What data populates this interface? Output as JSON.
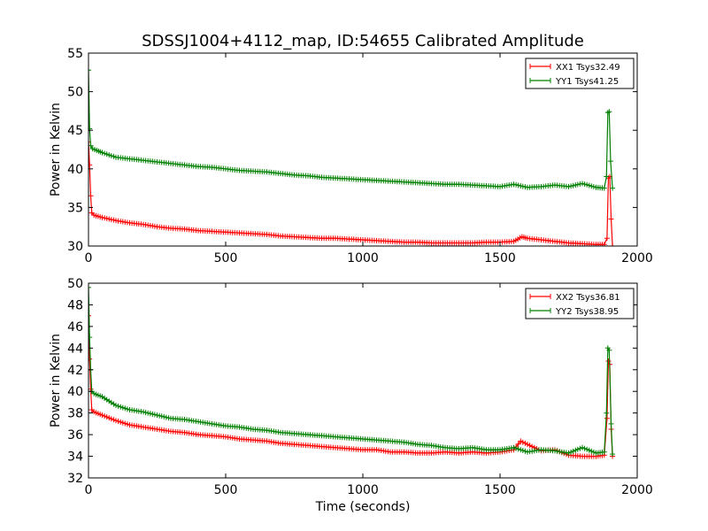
{
  "figure": {
    "title": "SDSSJ1004+4112_map, ID:54655 Calibrated Amplitude"
  },
  "chart_data": [
    {
      "type": "line",
      "title": "SDSSJ1004+4112_map, ID:54655 Calibrated Amplitude",
      "xlabel": "",
      "ylabel": "Power in Kelvin",
      "xlim": [
        0,
        2000
      ],
      "ylim": [
        30,
        55
      ],
      "x_ticks": [
        "0",
        "500",
        "1000",
        "1500",
        "2000"
      ],
      "y_ticks": [
        "30",
        "35",
        "40",
        "45",
        "50",
        "55"
      ],
      "grid": false,
      "legend_position": "top-right",
      "marker": "+",
      "series": [
        {
          "name": "XX1 Tsys32.49",
          "color": "#ff0000",
          "points": [
            [
              0,
              43.5
            ],
            [
              4,
              40.5
            ],
            [
              8,
              36.5
            ],
            [
              12,
              34.3
            ],
            [
              20,
              34.0
            ],
            [
              50,
              33.7
            ],
            [
              100,
              33.3
            ],
            [
              150,
              33.0
            ],
            [
              200,
              32.8
            ],
            [
              250,
              32.5
            ],
            [
              300,
              32.3
            ],
            [
              350,
              32.2
            ],
            [
              400,
              32.0
            ],
            [
              450,
              31.9
            ],
            [
              500,
              31.8
            ],
            [
              550,
              31.7
            ],
            [
              600,
              31.6
            ],
            [
              650,
              31.5
            ],
            [
              700,
              31.3
            ],
            [
              750,
              31.2
            ],
            [
              800,
              31.1
            ],
            [
              850,
              31.0
            ],
            [
              900,
              31.0
            ],
            [
              950,
              30.9
            ],
            [
              1000,
              30.8
            ],
            [
              1050,
              30.7
            ],
            [
              1100,
              30.6
            ],
            [
              1150,
              30.5
            ],
            [
              1200,
              30.5
            ],
            [
              1250,
              30.4
            ],
            [
              1300,
              30.4
            ],
            [
              1350,
              30.4
            ],
            [
              1400,
              30.4
            ],
            [
              1450,
              30.5
            ],
            [
              1500,
              30.5
            ],
            [
              1550,
              30.6
            ],
            [
              1580,
              31.2
            ],
            [
              1600,
              31.0
            ],
            [
              1650,
              30.8
            ],
            [
              1700,
              30.6
            ],
            [
              1750,
              30.4
            ],
            [
              1800,
              30.3
            ],
            [
              1850,
              30.2
            ],
            [
              1880,
              30.2
            ],
            [
              1890,
              31.0
            ],
            [
              1895,
              38.8
            ],
            [
              1900,
              39.0
            ],
            [
              1905,
              33.5
            ],
            [
              1910,
              30.0
            ]
          ]
        },
        {
          "name": "YY1 Tsys41.25",
          "color": "#008000",
          "points": [
            [
              0,
              52.8
            ],
            [
              4,
              45.2
            ],
            [
              8,
              43.0
            ],
            [
              15,
              42.6
            ],
            [
              30,
              42.4
            ],
            [
              50,
              42.1
            ],
            [
              100,
              41.5
            ],
            [
              150,
              41.3
            ],
            [
              200,
              41.1
            ],
            [
              250,
              40.9
            ],
            [
              300,
              40.7
            ],
            [
              350,
              40.5
            ],
            [
              400,
              40.3
            ],
            [
              450,
              40.2
            ],
            [
              500,
              40.0
            ],
            [
              550,
              39.8
            ],
            [
              600,
              39.7
            ],
            [
              650,
              39.6
            ],
            [
              700,
              39.4
            ],
            [
              750,
              39.2
            ],
            [
              800,
              39.1
            ],
            [
              850,
              38.9
            ],
            [
              900,
              38.8
            ],
            [
              950,
              38.7
            ],
            [
              1000,
              38.6
            ],
            [
              1050,
              38.5
            ],
            [
              1100,
              38.4
            ],
            [
              1150,
              38.3
            ],
            [
              1200,
              38.2
            ],
            [
              1250,
              38.1
            ],
            [
              1300,
              38.0
            ],
            [
              1350,
              38.0
            ],
            [
              1400,
              37.9
            ],
            [
              1450,
              37.8
            ],
            [
              1500,
              37.7
            ],
            [
              1550,
              38.0
            ],
            [
              1600,
              37.6
            ],
            [
              1650,
              37.7
            ],
            [
              1700,
              37.9
            ],
            [
              1750,
              37.7
            ],
            [
              1800,
              38.1
            ],
            [
              1850,
              37.6
            ],
            [
              1880,
              37.5
            ],
            [
              1888,
              39.0
            ],
            [
              1893,
              47.3
            ],
            [
              1898,
              47.4
            ],
            [
              1903,
              41.0
            ],
            [
              1910,
              37.5
            ]
          ]
        }
      ]
    },
    {
      "type": "line",
      "title": "",
      "xlabel": "Time (seconds)",
      "ylabel": "Power in Kelvin",
      "xlim": [
        0,
        2000
      ],
      "ylim": [
        32,
        50
      ],
      "x_ticks": [
        "0",
        "500",
        "1000",
        "1500",
        "2000"
      ],
      "y_ticks": [
        "32",
        "34",
        "36",
        "38",
        "40",
        "42",
        "44",
        "46",
        "48",
        "50"
      ],
      "grid": false,
      "legend_position": "top-right",
      "marker": "+",
      "series": [
        {
          "name": "XX2 Tsys36.81",
          "color": "#ff0000",
          "points": [
            [
              0,
              47.0
            ],
            [
              4,
              43.0
            ],
            [
              8,
              40.2
            ],
            [
              12,
              38.3
            ],
            [
              20,
              38.1
            ],
            [
              50,
              37.8
            ],
            [
              100,
              37.3
            ],
            [
              150,
              36.9
            ],
            [
              200,
              36.7
            ],
            [
              250,
              36.5
            ],
            [
              300,
              36.3
            ],
            [
              350,
              36.2
            ],
            [
              400,
              36.0
            ],
            [
              450,
              35.9
            ],
            [
              500,
              35.8
            ],
            [
              550,
              35.6
            ],
            [
              600,
              35.5
            ],
            [
              650,
              35.4
            ],
            [
              700,
              35.2
            ],
            [
              750,
              35.1
            ],
            [
              800,
              35.0
            ],
            [
              850,
              34.9
            ],
            [
              900,
              34.8
            ],
            [
              950,
              34.7
            ],
            [
              1000,
              34.6
            ],
            [
              1050,
              34.6
            ],
            [
              1100,
              34.4
            ],
            [
              1150,
              34.4
            ],
            [
              1200,
              34.3
            ],
            [
              1250,
              34.3
            ],
            [
              1300,
              34.4
            ],
            [
              1350,
              34.3
            ],
            [
              1400,
              34.4
            ],
            [
              1450,
              34.3
            ],
            [
              1500,
              34.4
            ],
            [
              1550,
              34.6
            ],
            [
              1575,
              35.4
            ],
            [
              1600,
              35.1
            ],
            [
              1650,
              34.5
            ],
            [
              1700,
              34.6
            ],
            [
              1750,
              34.1
            ],
            [
              1800,
              34.0
            ],
            [
              1850,
              34.0
            ],
            [
              1880,
              34.1
            ],
            [
              1890,
              37.5
            ],
            [
              1895,
              42.8
            ],
            [
              1900,
              42.5
            ],
            [
              1905,
              36.5
            ],
            [
              1910,
              34.0
            ]
          ]
        },
        {
          "name": "YY2 Tsys38.95",
          "color": "#008000",
          "points": [
            [
              0,
              49.6
            ],
            [
              4,
              45.0
            ],
            [
              8,
              42.0
            ],
            [
              12,
              40.0
            ],
            [
              20,
              39.8
            ],
            [
              50,
              39.5
            ],
            [
              100,
              38.7
            ],
            [
              150,
              38.3
            ],
            [
              200,
              38.1
            ],
            [
              250,
              37.8
            ],
            [
              300,
              37.5
            ],
            [
              350,
              37.4
            ],
            [
              400,
              37.2
            ],
            [
              450,
              37.0
            ],
            [
              500,
              36.8
            ],
            [
              550,
              36.7
            ],
            [
              600,
              36.5
            ],
            [
              650,
              36.4
            ],
            [
              700,
              36.2
            ],
            [
              750,
              36.1
            ],
            [
              800,
              36.0
            ],
            [
              850,
              35.9
            ],
            [
              900,
              35.8
            ],
            [
              950,
              35.7
            ],
            [
              1000,
              35.6
            ],
            [
              1050,
              35.5
            ],
            [
              1100,
              35.4
            ],
            [
              1150,
              35.3
            ],
            [
              1200,
              35.1
            ],
            [
              1250,
              35.0
            ],
            [
              1300,
              34.8
            ],
            [
              1350,
              34.7
            ],
            [
              1400,
              34.8
            ],
            [
              1450,
              34.6
            ],
            [
              1500,
              34.6
            ],
            [
              1550,
              34.8
            ],
            [
              1600,
              34.4
            ],
            [
              1650,
              34.6
            ],
            [
              1700,
              34.5
            ],
            [
              1750,
              34.3
            ],
            [
              1800,
              34.8
            ],
            [
              1850,
              34.3
            ],
            [
              1880,
              34.4
            ],
            [
              1888,
              38.0
            ],
            [
              1893,
              44.0
            ],
            [
              1898,
              43.8
            ],
            [
              1905,
              37.0
            ],
            [
              1910,
              34.2
            ]
          ]
        }
      ]
    }
  ]
}
